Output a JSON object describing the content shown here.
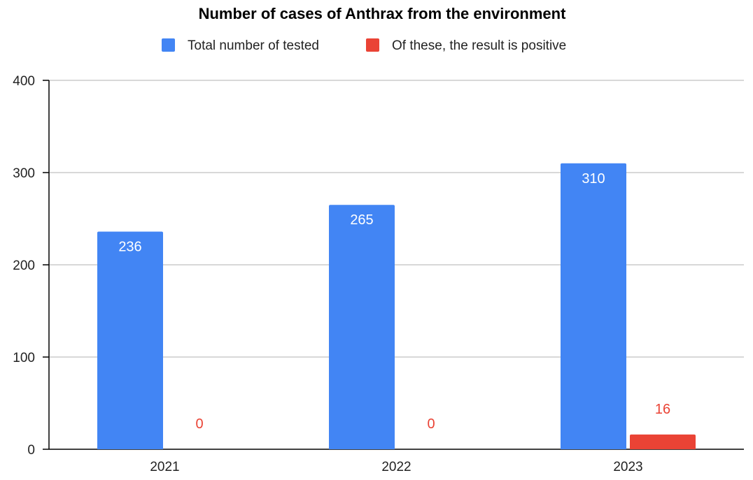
{
  "chart_data": {
    "type": "bar",
    "title": "Number of cases of Anthrax from the environment",
    "categories": [
      "2021",
      "2022",
      "2023"
    ],
    "series": [
      {
        "name": "Total number of tested",
        "values": [
          236,
          265,
          310
        ],
        "color": "#4285F4",
        "label_color": "#FFFFFF",
        "label_position": "inside-top"
      },
      {
        "name": "Of these, the result is positive",
        "values": [
          0,
          0,
          16
        ],
        "color": "#EA4335",
        "label_color": "#EA4335",
        "label_position": "above"
      }
    ],
    "yticks": [
      0,
      100,
      200,
      300,
      400
    ],
    "ylim": [
      0,
      400
    ],
    "grid": true,
    "legend": "top-center",
    "xlabel": "",
    "ylabel": ""
  }
}
